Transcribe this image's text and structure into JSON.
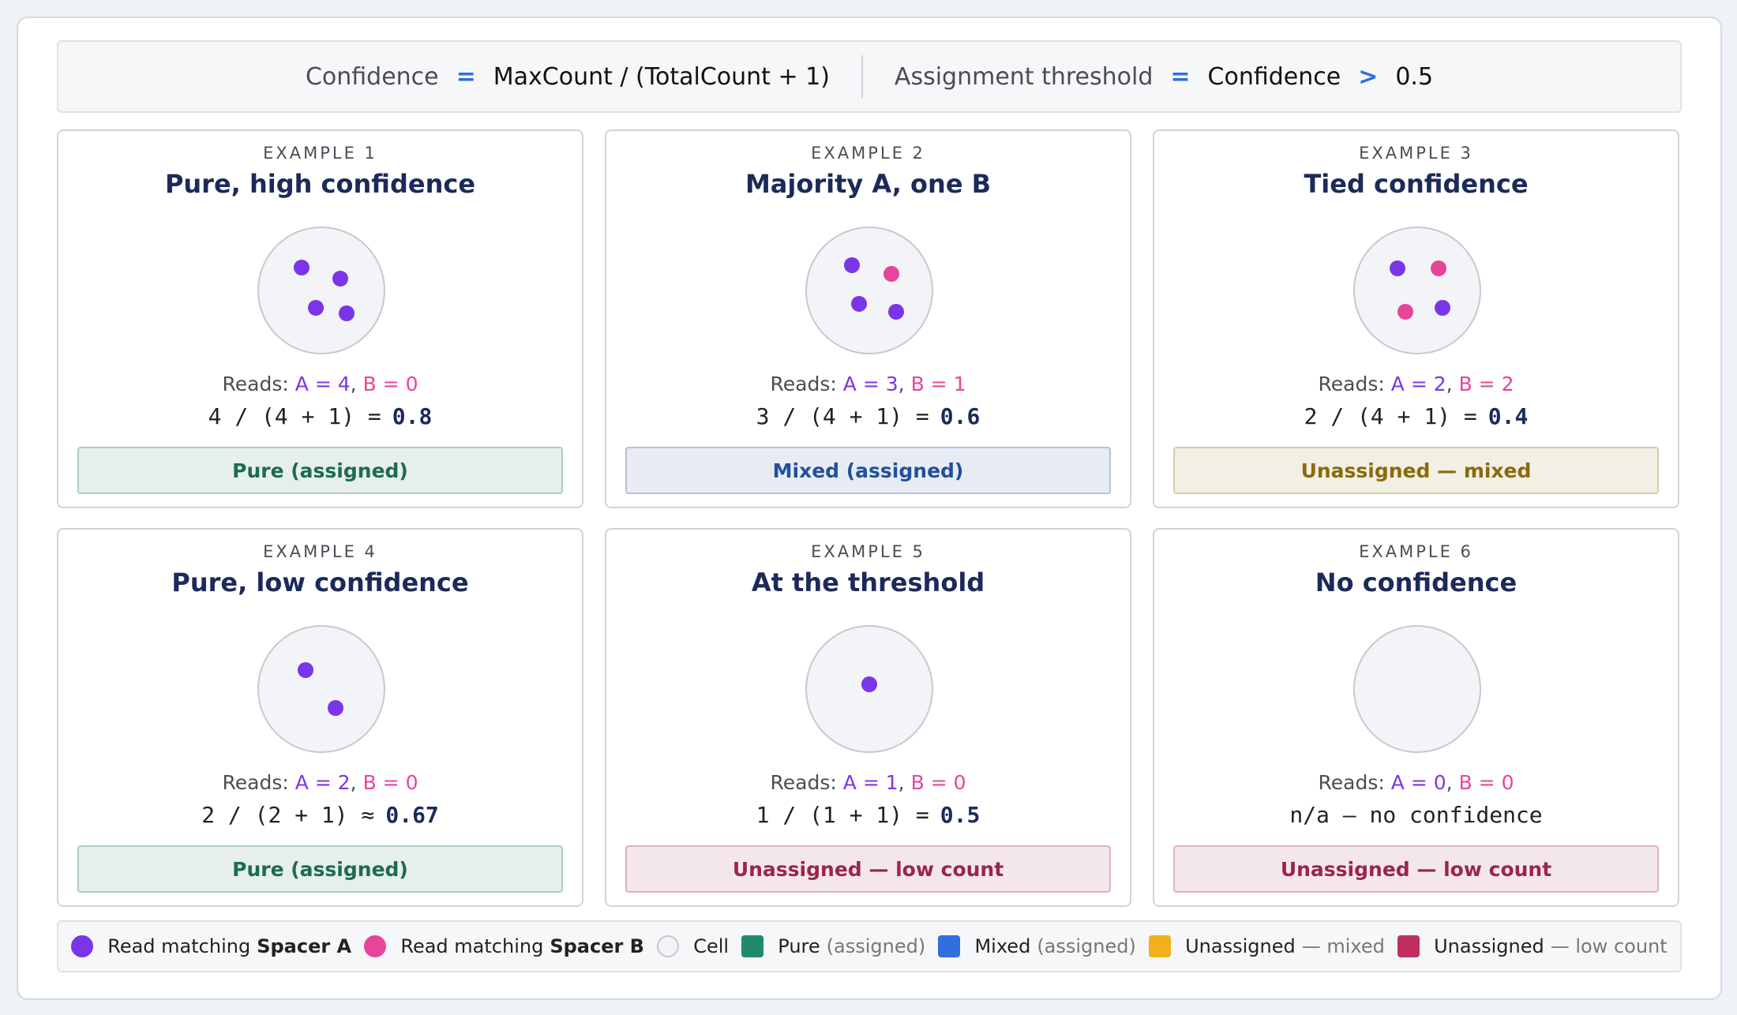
{
  "formula_bar": {
    "left": {
      "label": "Confidence",
      "op": "=",
      "expr": "MaxCount / (TotalCount + 1)"
    },
    "right": {
      "label": "Assignment threshold",
      "op": "=",
      "expr": "Confidence",
      "op2": ">",
      "value": "0.5"
    }
  },
  "examples": [
    {
      "eyebrow": "EXAMPLE 1",
      "title": "Pure, high confidence",
      "dots": [
        "#7b35e8",
        "#7b35e8",
        "#7b35e8",
        "#7b35e8"
      ],
      "reads": {
        "label": "Reads:",
        "a": "A = 4",
        "sep": ",",
        "b": "B = 0"
      },
      "formula": {
        "expr": "4 / (4 + 1) =",
        "result": "0.8"
      },
      "status": {
        "text": "Pure (assigned)",
        "color": "#1d6b4f"
      }
    },
    {
      "eyebrow": "EXAMPLE 2",
      "title": "Majority A, one B",
      "dots": [
        "#7b35e8",
        "#e8449a",
        "#7b35e8",
        "#7b35e8"
      ],
      "reads": {
        "label": "Reads:",
        "a": "A = 3",
        "sep": ",",
        "b": "B = 1"
      },
      "formula": {
        "expr": "3 / (4 + 1) =",
        "result": "0.6"
      },
      "status": {
        "text": "Mixed (assigned)",
        "color": "#22509a"
      }
    },
    {
      "eyebrow": "EXAMPLE 3",
      "title": "Tied confidence",
      "dots": [
        "#7b35e8",
        "#e8449a",
        "#e8449a",
        "#7b35e8"
      ],
      "reads": {
        "label": "Reads:",
        "a": "A = 2",
        "sep": ",",
        "b": "B = 2"
      },
      "formula": {
        "expr": "2 / (4 + 1) =",
        "result": "0.4"
      },
      "status": {
        "text": "Unassigned — mixed",
        "color": "#8a6a0a"
      }
    },
    {
      "eyebrow": "EXAMPLE 4",
      "title": "Pure, low confidence",
      "dots": [
        "#7b35e8",
        "#7b35e8"
      ],
      "reads": {
        "label": "Reads:",
        "a": "A = 2",
        "sep": ",",
        "b": "B = 0"
      },
      "formula": {
        "expr": "2 / (2 + 1) ≈",
        "result": "0.67"
      },
      "status": {
        "text": "Pure (assigned)",
        "color": "#1d6b4f"
      }
    },
    {
      "eyebrow": "EXAMPLE 5",
      "title": "At the threshold",
      "dots": [
        "#7b35e8"
      ],
      "reads": {
        "label": "Reads:",
        "a": "A = 1",
        "sep": ",",
        "b": "B = 0"
      },
      "formula": {
        "expr": "1 / (1 + 1) =",
        "result": "0.5"
      },
      "status": {
        "text": "Unassigned — low count",
        "color": "#9a2450"
      }
    },
    {
      "eyebrow": "EXAMPLE 6",
      "title": "No confidence",
      "dots": [],
      "reads": {
        "label": "Reads:",
        "a": "A = 0",
        "sep": ",",
        "b": "B = 0"
      },
      "formula": {
        "expr": "n/a — no confidence"
      },
      "status": {
        "text": "Unassigned — low count",
        "color": "#9a2450"
      }
    }
  ],
  "legend": [
    {
      "text": "Read matching",
      "bold": "Spacer A",
      "swatch": "#7b35e8",
      "shape": "circle"
    },
    {
      "text": "Read matching",
      "bold": "Spacer B",
      "swatch": "#e8449a",
      "shape": "circle"
    },
    {
      "text": "Cell",
      "swatch": "#f3f4f7",
      "shape": "circle"
    },
    {
      "text": "Pure",
      "muted": "(assigned)",
      "swatch": "#1f8a6e",
      "shape": "square"
    },
    {
      "text": "Mixed",
      "muted": "(assigned)",
      "swatch": "#2f6fe0",
      "shape": "square"
    },
    {
      "text": "Unassigned",
      "muted": "— mixed",
      "swatch": "#f2b01e",
      "shape": "square"
    },
    {
      "text": "Unassigned",
      "muted": "— low count",
      "swatch": "#c0305f",
      "shape": "square"
    }
  ]
}
